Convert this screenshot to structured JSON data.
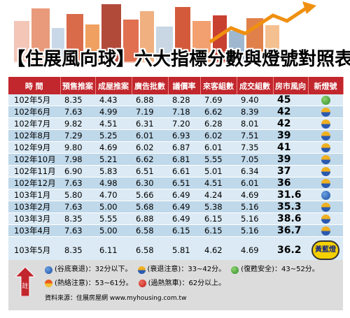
{
  "title": "【住展風向球】六大指標分數與燈號對照表",
  "colors": {
    "header_bg": "#c2272d",
    "row_light": "#dbeaf4",
    "row_dark": "#bfd8ea",
    "note_bg": "#dcdcdc"
  },
  "headers": [
    "時 間",
    "預售推案",
    "成屋推案",
    "廣告批數",
    "議價率",
    "來客組數",
    "成交組數",
    "房市風向",
    "新燈號"
  ],
  "rows": [
    {
      "time": "102年5月",
      "v1": "8.35",
      "v2": "4.43",
      "v3": "6.88",
      "v4": "8.28",
      "v5": "7.69",
      "v6": "9.40",
      "score": "45",
      "lamp": "green"
    },
    {
      "time": "102年6月",
      "v1": "7.63",
      "v2": "4.99",
      "v3": "7.19",
      "v4": "7.18",
      "v5": "6.62",
      "v6": "8.39",
      "score": "42",
      "lamp": "yellow-blue"
    },
    {
      "time": "102年7月",
      "v1": "9.82",
      "v2": "4.51",
      "v3": "6.31",
      "v4": "7.20",
      "v5": "6.28",
      "v6": "8.01",
      "score": "42",
      "lamp": "yellow-blue"
    },
    {
      "time": "102年8月",
      "v1": "7.29",
      "v2": "5.25",
      "v3": "6.01",
      "v4": "6.93",
      "v5": "6.02",
      "v6": "7.51",
      "score": "39",
      "lamp": "yellow-blue"
    },
    {
      "time": "102年9月",
      "v1": "9.80",
      "v2": "4.69",
      "v3": "6.02",
      "v4": "6.87",
      "v5": "6.01",
      "v6": "7.35",
      "score": "41",
      "lamp": "yellow-blue"
    },
    {
      "time": "102年10月",
      "v1": "7.98",
      "v2": "5.21",
      "v3": "6.62",
      "v4": "6.81",
      "v5": "5.55",
      "v6": "7.05",
      "score": "39",
      "lamp": "yellow-blue"
    },
    {
      "time": "102年11月",
      "v1": "6.90",
      "v2": "5.83",
      "v3": "6.51",
      "v4": "6.61",
      "v5": "5.01",
      "v6": "6.34",
      "score": "37",
      "lamp": "yellow-blue"
    },
    {
      "time": "102年12月",
      "v1": "7.63",
      "v2": "4.98",
      "v3": "6.30",
      "v4": "6.51",
      "v5": "4.51",
      "v6": "6.01",
      "score": "36",
      "lamp": "yellow-blue"
    },
    {
      "time": "103年1月",
      "v1": "5.80",
      "v2": "4.70",
      "v3": "5.66",
      "v4": "6.49",
      "v5": "4.24",
      "v6": "4.69",
      "score": "31.6",
      "lamp": "blue"
    },
    {
      "time": "103年2月",
      "v1": "7.63",
      "v2": "5.00",
      "v3": "5.68",
      "v4": "6.49",
      "v5": "5.38",
      "v6": "5.16",
      "score": "35.3",
      "lamp": "yellow-blue"
    },
    {
      "time": "103年3月",
      "v1": "8.35",
      "v2": "5.55",
      "v3": "6.88",
      "v4": "6.49",
      "v5": "6.15",
      "v6": "5.16",
      "score": "38.6",
      "lamp": "yellow-blue"
    },
    {
      "time": "103年4月",
      "v1": "7.63",
      "v2": "5.00",
      "v3": "6.58",
      "v4": "6.15",
      "v5": "6.15",
      "v6": "5.16",
      "score": "36.7",
      "lamp": "yellow-blue"
    },
    {
      "time": "103年5月",
      "v1": "8.35",
      "v2": "6.11",
      "v3": "6.58",
      "v4": "5.81",
      "v5": "4.62",
      "v6": "4.69",
      "score": "36.2",
      "lamp": "badge"
    }
  ],
  "badge_label": "黃藍燈",
  "note": {
    "label": "註",
    "legend": [
      {
        "lamp": "blue",
        "text": "(谷底衰退)：32分以下。"
      },
      {
        "lamp": "yellow-blue",
        "text": "(衰退注意)：33~42分。"
      },
      {
        "lamp": "green",
        "text": "(復甦安全)：43~52分。"
      },
      {
        "lamp": "yellow-red",
        "text": "(熱絡注意)：53~61分。"
      },
      {
        "lamp": "red",
        "text": "(過熱煞車)：62分以上。"
      }
    ],
    "source": "資料來源：住展房屋網 www.myhousing.com.tw"
  }
}
